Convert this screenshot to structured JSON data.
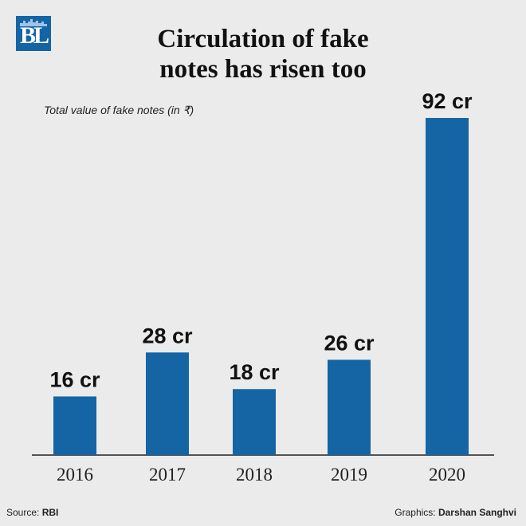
{
  "logo": {
    "text": "BL"
  },
  "header": {
    "title_line1": "Circulation of fake",
    "title_line2": "notes has risen too",
    "subtitle": "Total value of fake notes (in ₹)"
  },
  "footer": {
    "source_label": "Source:",
    "source_value": "RBI",
    "graphics_label": "Graphics:",
    "graphics_value": "Darshan Sanghvi"
  },
  "colors": {
    "bar": "#1565a5",
    "background": "#ebebeb",
    "axis": "#222222"
  },
  "chart_data": {
    "type": "bar",
    "categories": [
      "2016",
      "2017",
      "2018",
      "2019",
      "2020"
    ],
    "values": [
      16,
      28,
      18,
      26,
      92
    ],
    "data_labels": [
      "16 cr",
      "28 cr",
      "18 cr",
      "26 cr",
      "92 cr"
    ],
    "title": "Circulation of fake notes has risen too",
    "subtitle": "Total value of fake notes (in ₹)",
    "xlabel": "",
    "ylabel": "",
    "ylim": [
      0,
      92
    ],
    "grid": false,
    "legend": "none"
  }
}
